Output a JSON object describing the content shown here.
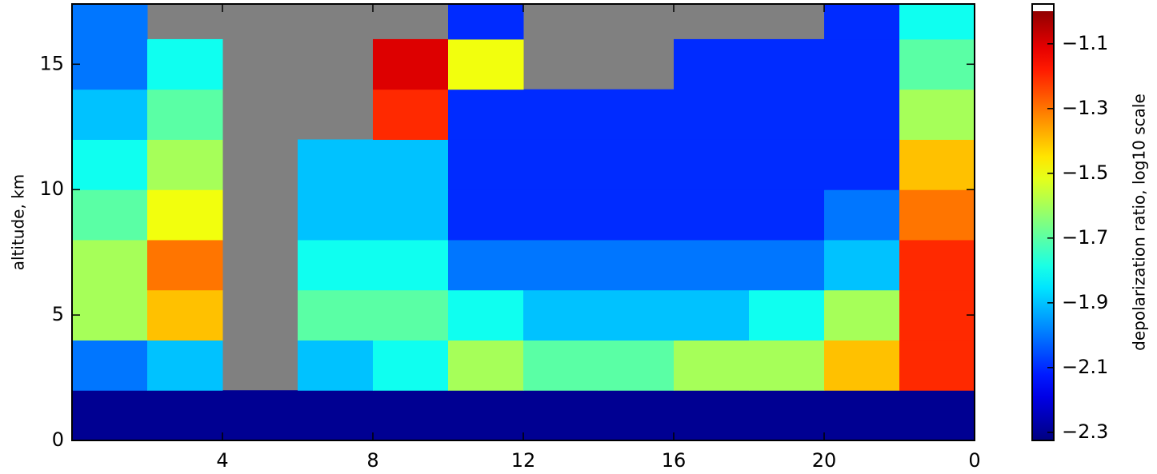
{
  "chart_data": {
    "type": "heatmap",
    "y_label": "altitude, km",
    "colorbar_label": "depolarization ratio, log10 scale",
    "x_bins": [
      0,
      2,
      4,
      6,
      8,
      10,
      12,
      14,
      16,
      18,
      20,
      22,
      24
    ],
    "y_bins": [
      0,
      2,
      4,
      6,
      8,
      10,
      12,
      14,
      16,
      17.4
    ],
    "z": [
      [
        -2.3,
        -2.3,
        -2.3,
        -2.3,
        -2.3,
        -2.3,
        -2.3,
        -2.3,
        -2.3,
        -2.3,
        -2.3,
        -2.3
      ],
      [
        -2.0,
        -1.9,
        null,
        -1.9,
        -1.8,
        -1.6,
        -1.7,
        -1.7,
        -1.6,
        -1.6,
        -1.4,
        -1.2
      ],
      [
        -1.6,
        -1.4,
        null,
        -1.7,
        -1.7,
        -1.8,
        -1.9,
        -1.9,
        -1.9,
        -1.8,
        -1.6,
        -1.2
      ],
      [
        -1.6,
        -1.3,
        null,
        -1.8,
        -1.8,
        -2.0,
        -2.0,
        -2.0,
        -2.0,
        -2.0,
        -1.9,
        -1.2
      ],
      [
        -1.7,
        -1.5,
        null,
        -1.9,
        -1.9,
        -2.1,
        -2.1,
        -2.1,
        -2.1,
        -2.1,
        -2.0,
        -1.3
      ],
      [
        -1.8,
        -1.6,
        null,
        -1.9,
        -1.9,
        -2.1,
        -2.1,
        -2.1,
        -2.1,
        -2.1,
        -2.1,
        -1.4
      ],
      [
        -1.9,
        -1.7,
        null,
        null,
        -1.2,
        -2.1,
        -2.1,
        -2.1,
        -2.1,
        -2.1,
        -2.1,
        -1.6
      ],
      [
        -2.0,
        -1.8,
        null,
        null,
        -1.1,
        -1.5,
        null,
        null,
        -2.1,
        -2.1,
        -2.1,
        -1.7
      ],
      [
        -2.0,
        null,
        null,
        null,
        null,
        -2.1,
        null,
        null,
        null,
        null,
        -2.1,
        -1.8
      ]
    ],
    "missing_color": "#808080",
    "colormap": "jet",
    "xlim": [
      0,
      24
    ],
    "xticks": [
      4,
      8,
      12,
      16,
      20,
      {
        "value": 24,
        "label": "0"
      }
    ],
    "ylim": [
      0,
      17.4
    ],
    "yticks": [
      0,
      5,
      10,
      15
    ],
    "clim": [
      -2.325,
      -0.977
    ],
    "cticks": [
      {
        "value": -1.1,
        "label": "−1.1"
      },
      {
        "value": -1.3,
        "label": "−1.3"
      },
      {
        "value": -1.5,
        "label": "−1.5"
      },
      {
        "value": -1.7,
        "label": "−1.7"
      },
      {
        "value": -1.9,
        "label": "−1.9"
      },
      {
        "value": -2.1,
        "label": "−2.1"
      },
      {
        "value": -2.3,
        "label": "−2.3"
      }
    ]
  }
}
